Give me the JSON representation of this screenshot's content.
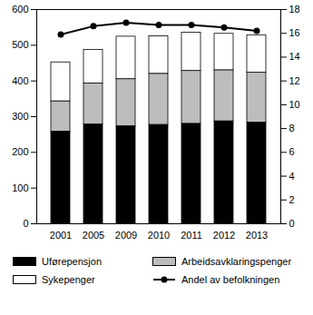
{
  "chart_data": {
    "type": "bar",
    "stacked": true,
    "legend": "bottom",
    "categories": [
      "2001",
      "2005",
      "2009",
      "2010",
      "2011",
      "2012",
      "2013"
    ],
    "series": [
      {
        "name": "Uførepensjon",
        "color": "#000000",
        "values": [
          258,
          278,
          273,
          277,
          280,
          287,
          283
        ]
      },
      {
        "name": "Arbeidsavklaringspenger",
        "color": "#bdbdbd",
        "values": [
          85,
          115,
          132,
          143,
          148,
          143,
          140
        ]
      },
      {
        "name": "Sykepenger",
        "color": "#ffffff",
        "values": [
          109,
          94,
          119,
          105,
          107,
          102,
          105
        ]
      },
      {
        "name": "Andel av befolkningen",
        "type": "line",
        "axis": "y2",
        "color": "#000000",
        "marker": "circle",
        "values": [
          15.9,
          16.6,
          16.9,
          16.7,
          16.7,
          16.5,
          16.2
        ]
      }
    ],
    "ylim": [
      0,
      600
    ],
    "yticks": [
      0,
      100,
      200,
      300,
      400,
      500,
      600
    ],
    "y2lim": [
      0,
      18
    ],
    "y2ticks": [
      0,
      2,
      4,
      6,
      8,
      10,
      12,
      14,
      16,
      18
    ]
  }
}
